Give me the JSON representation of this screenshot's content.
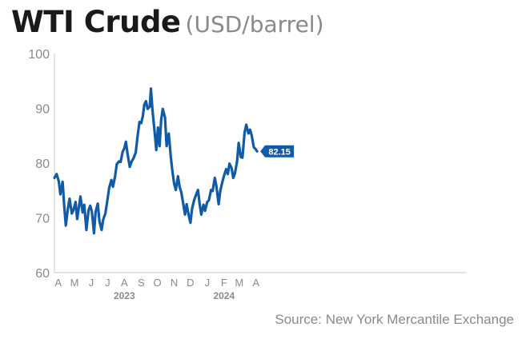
{
  "title": "WTI Crude",
  "subtitle": "(USD/barrel)",
  "source": "Source: New York Mercantile Exchange",
  "colors": {
    "line": "#0f5ba8",
    "axis": "#c8c8c8",
    "tick_text": "#8a8a8a",
    "badge_bg": "#0f5ba8",
    "badge_text": "#ffffff"
  },
  "chart_data": {
    "type": "line",
    "x_type": "date",
    "xlim": [
      "2022-03-25",
      "2024-04-24"
    ],
    "ylim": [
      60,
      100
    ],
    "y_ticks": [
      60,
      70,
      80,
      90,
      100
    ],
    "x_ticks": [
      {
        "date": "2022-04-01",
        "label": "A"
      },
      {
        "date": "2022-05-01",
        "label": "M"
      },
      {
        "date": "2022-06-01",
        "label": "J"
      },
      {
        "date": "2022-07-01",
        "label": "J"
      },
      {
        "date": "2022-08-01",
        "label": "A"
      },
      {
        "date": "2022-09-01",
        "label": "S"
      },
      {
        "date": "2022-10-01",
        "label": "O"
      },
      {
        "date": "2022-11-01",
        "label": "N"
      },
      {
        "date": "2022-12-01",
        "label": "D"
      },
      {
        "date": "2023-01-01",
        "label": "J"
      },
      {
        "date": "2023-02-01",
        "label": "F"
      },
      {
        "date": "2023-03-01",
        "label": "M"
      },
      {
        "date": "2023-04-01",
        "label": "A"
      }
    ],
    "year_labels": [
      {
        "date": "2022-08-01",
        "label": "2023"
      },
      {
        "date": "2023-02-01",
        "label": "2024"
      }
    ],
    "last_value_label": "82.15",
    "series": [
      {
        "values": [
          [
            "2022-03-25",
            77.3
          ],
          [
            "2022-03-29",
            78.0
          ],
          [
            "2022-04-02",
            76.7
          ],
          [
            "2022-04-05",
            74.3
          ],
          [
            "2022-04-09",
            76.6
          ],
          [
            "2022-04-12",
            72.2
          ],
          [
            "2022-04-15",
            68.6
          ],
          [
            "2022-04-19",
            71.8
          ],
          [
            "2022-04-22",
            73.5
          ],
          [
            "2022-04-26",
            70.8
          ],
          [
            "2022-04-29",
            71.4
          ],
          [
            "2022-05-03",
            72.9
          ],
          [
            "2022-05-06",
            69.8
          ],
          [
            "2022-05-09",
            71.9
          ],
          [
            "2022-05-12",
            73.9
          ],
          [
            "2022-05-16",
            71.0
          ],
          [
            "2022-05-19",
            72.4
          ],
          [
            "2022-05-23",
            67.8
          ],
          [
            "2022-05-27",
            71.4
          ],
          [
            "2022-05-30",
            72.2
          ],
          [
            "2022-06-02",
            71.2
          ],
          [
            "2022-06-06",
            67.2
          ],
          [
            "2022-06-09",
            71.1
          ],
          [
            "2022-06-13",
            72.6
          ],
          [
            "2022-06-16",
            69.4
          ],
          [
            "2022-06-20",
            67.8
          ],
          [
            "2022-06-23",
            69.7
          ],
          [
            "2022-06-27",
            70.8
          ],
          [
            "2022-06-30",
            72.7
          ],
          [
            "2022-07-04",
            75.5
          ],
          [
            "2022-07-08",
            76.9
          ],
          [
            "2022-07-11",
            75.7
          ],
          [
            "2022-07-15",
            77.6
          ],
          [
            "2022-07-18",
            79.8
          ],
          [
            "2022-07-22",
            80.3
          ],
          [
            "2022-07-25",
            80.2
          ],
          [
            "2022-07-29",
            82.1
          ],
          [
            "2022-08-01",
            82.7
          ],
          [
            "2022-08-04",
            83.9
          ],
          [
            "2022-08-07",
            81.6
          ],
          [
            "2022-08-11",
            79.3
          ],
          [
            "2022-08-14",
            80.2
          ],
          [
            "2022-08-18",
            80.9
          ],
          [
            "2022-08-22",
            81.9
          ],
          [
            "2022-08-25",
            84.5
          ],
          [
            "2022-08-29",
            87.5
          ],
          [
            "2022-09-01",
            87.3
          ],
          [
            "2022-09-04",
            88.5
          ],
          [
            "2022-09-07",
            90.7
          ],
          [
            "2022-09-10",
            91.3
          ],
          [
            "2022-09-13",
            89.9
          ],
          [
            "2022-09-17",
            90.3
          ],
          [
            "2022-09-19",
            93.6
          ],
          [
            "2022-09-22",
            89.6
          ],
          [
            "2022-09-26",
            85.6
          ],
          [
            "2022-09-29",
            82.4
          ],
          [
            "2022-10-02",
            86.5
          ],
          [
            "2022-10-05",
            83.1
          ],
          [
            "2022-10-08",
            87.9
          ],
          [
            "2022-10-11",
            89.9
          ],
          [
            "2022-10-15",
            88.3
          ],
          [
            "2022-10-18",
            83.1
          ],
          [
            "2022-10-22",
            85.4
          ],
          [
            "2022-10-26",
            80.9
          ],
          [
            "2022-10-29",
            78.3
          ],
          [
            "2022-11-01",
            76.2
          ],
          [
            "2022-11-04",
            75.1
          ],
          [
            "2022-11-08",
            77.6
          ],
          [
            "2022-11-11",
            75.7
          ],
          [
            "2022-11-14",
            74.7
          ],
          [
            "2022-11-18",
            72.4
          ],
          [
            "2022-11-21",
            70.6
          ],
          [
            "2022-11-24",
            72.5
          ],
          [
            "2022-11-28",
            70.4
          ],
          [
            "2022-12-01",
            69.1
          ],
          [
            "2022-12-04",
            71.7
          ],
          [
            "2022-12-08",
            73.3
          ],
          [
            "2022-12-11",
            74.1
          ],
          [
            "2022-12-15",
            75.1
          ],
          [
            "2022-12-18",
            72.5
          ],
          [
            "2022-12-21",
            70.6
          ],
          [
            "2022-12-25",
            72.4
          ],
          [
            "2022-12-28",
            71.3
          ],
          [
            "2023-01-01",
            72.9
          ],
          [
            "2023-01-04",
            73.2
          ],
          [
            "2023-01-08",
            75.1
          ],
          [
            "2023-01-11",
            74.9
          ],
          [
            "2023-01-15",
            77.3
          ],
          [
            "2023-01-18",
            75.8
          ],
          [
            "2023-01-22",
            72.5
          ],
          [
            "2023-01-25",
            74.9
          ],
          [
            "2023-01-29",
            76.6
          ],
          [
            "2023-02-01",
            77.7
          ],
          [
            "2023-02-05",
            78.9
          ],
          [
            "2023-02-08",
            78.0
          ],
          [
            "2023-02-11",
            79.9
          ],
          [
            "2023-02-15",
            79.1
          ],
          [
            "2023-02-18",
            77.3
          ],
          [
            "2023-02-21",
            78.1
          ],
          [
            "2023-02-25",
            80.3
          ],
          [
            "2023-02-28",
            83.7
          ],
          [
            "2023-03-04",
            81.1
          ],
          [
            "2023-03-07",
            81.0
          ],
          [
            "2023-03-11",
            85.6
          ],
          [
            "2023-03-14",
            87.0
          ],
          [
            "2023-03-18",
            85.4
          ],
          [
            "2023-03-21",
            86.1
          ],
          [
            "2023-03-24",
            85.1
          ],
          [
            "2023-03-28",
            82.9
          ],
          [
            "2023-03-31",
            82.6
          ],
          [
            "2023-04-03",
            82.15
          ]
        ]
      }
    ]
  }
}
